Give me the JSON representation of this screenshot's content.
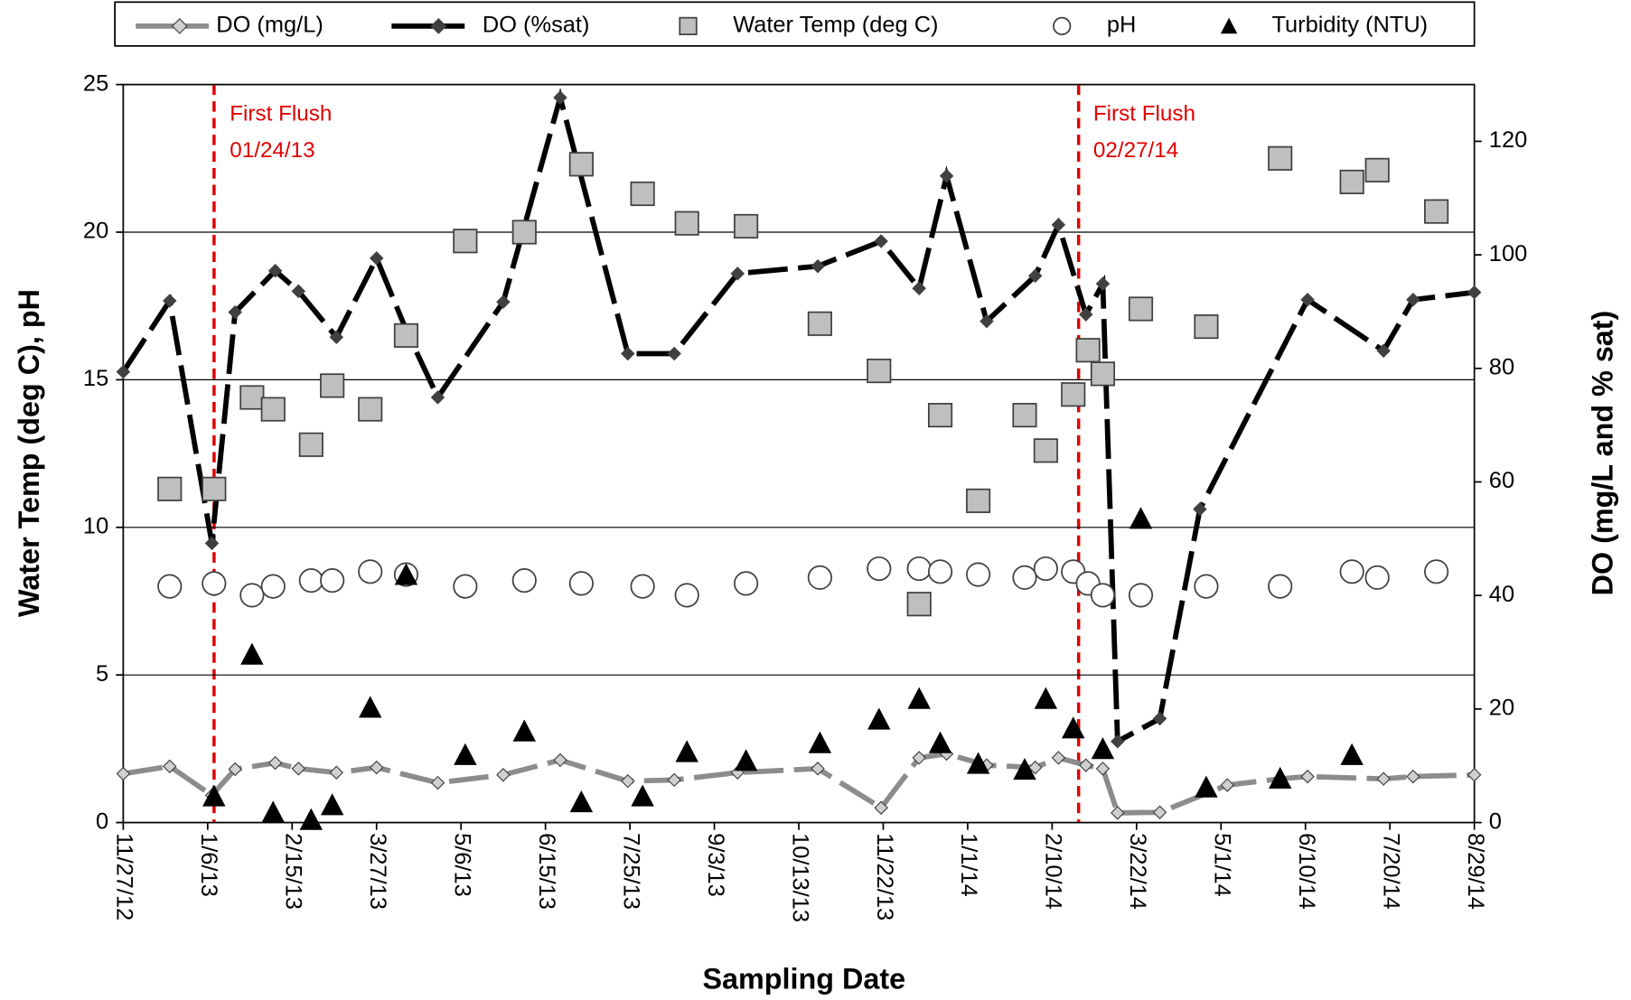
{
  "chart_data": {
    "type": "line",
    "x_label": "Sampling Date",
    "y_label": "Water Temp (deg C), pH",
    "y2_label": "DO (mg/L and % sat)",
    "xlim": [
      "11/27/12",
      "8/29/14"
    ],
    "xticks": [
      "11/27/12",
      "1/6/13",
      "2/15/13",
      "3/27/13",
      "5/6/13",
      "6/15/13",
      "7/25/13",
      "9/3/13",
      "10/13/13",
      "11/22/13",
      "1/1/14",
      "2/10/14",
      "3/22/14",
      "5/1/14",
      "6/10/14",
      "7/20/14",
      "8/29/14"
    ],
    "ylim": [
      0,
      25
    ],
    "yticks": [
      0,
      5,
      10,
      15,
      20,
      25
    ],
    "y2lim": [
      0,
      130
    ],
    "y2ticks": [
      0,
      20,
      40,
      60,
      80,
      100,
      120
    ],
    "grid": true,
    "annotations": [
      {
        "lines": [
          "First Flush",
          "01/24/13"
        ]
      },
      {
        "lines": [
          "First Flush",
          "02/27/14"
        ]
      }
    ],
    "series": [
      {
        "name": "DO (mg/L)",
        "color": "#8c8c8c",
        "marker": "diamond",
        "line_style": "dashed",
        "axis": "y2",
        "x": [
          "11/27/12",
          "12/19/12",
          "1/8/13",
          "1/19/13",
          "2/7/13",
          "2/18/13",
          "3/8/13",
          "3/27/13",
          "4/25/13",
          "5/26/13",
          "6/22/13",
          "7/24/13",
          "8/15/13",
          "9/14/13",
          "10/22/13",
          "11/21/13",
          "12/9/13",
          "12/22/13",
          "1/10/14",
          "2/2/14",
          "2/13/14",
          "2/26/14",
          "3/6/14",
          "3/13/14",
          "4/2/14",
          "5/4/14",
          "5/29/14",
          "6/11/14",
          "7/17/14",
          "7/31/14",
          "8/29/14"
        ],
        "values": [
          8.6,
          9.9,
          4.8,
          9.4,
          10.5,
          9.5,
          8.8,
          9.7,
          7.0,
          8.4,
          11.0,
          7.3,
          7.5,
          8.8,
          9.5,
          2.6,
          11.4,
          12.1,
          10.1,
          9.7,
          11.4,
          10.1,
          9.5,
          1.7,
          1.8,
          6.6,
          7.7,
          8.1,
          7.7,
          8.1,
          8.4
        ]
      },
      {
        "name": "DO (%sat)",
        "color": "#000000",
        "marker": "diamond",
        "line_style": "dashed",
        "axis": "y2",
        "x": [
          "11/27/12",
          "12/19/12",
          "1/8/13",
          "1/19/13",
          "2/7/13",
          "2/18/13",
          "3/8/13",
          "3/27/13",
          "4/10/13",
          "4/25/13",
          "5/26/13",
          "6/22/13",
          "7/24/13",
          "8/15/13",
          "9/14/13",
          "10/22/13",
          "11/21/13",
          "12/9/13",
          "12/22/13",
          "1/10/14",
          "2/2/14",
          "2/13/14",
          "2/26/14",
          "3/6/14",
          "3/13/14",
          "4/2/14",
          "4/21/14",
          "6/11/14",
          "7/17/14",
          "7/31/14",
          "8/29/14"
        ],
        "values": [
          79.4,
          91.9,
          49.2,
          89.9,
          97.2,
          93.6,
          85.5,
          99.4,
          86.8,
          74.9,
          91.7,
          127.7,
          82.6,
          82.6,
          96.7,
          98.0,
          102.4,
          94.1,
          113.9,
          88.3,
          96.3,
          105.3,
          89.5,
          94.9,
          14.3,
          18.3,
          55.2,
          92.1,
          83.1,
          92.1,
          93.4
        ]
      },
      {
        "name": "Water Temp (deg C)",
        "color": "#bfbfbf",
        "marker": "square",
        "axis": "y",
        "x": [
          "12/19/12",
          "1/9/13",
          "1/27/13",
          "2/6/13",
          "2/24/13",
          "3/6/13",
          "3/24/13",
          "4/10/13",
          "5/8/13",
          "6/5/13",
          "7/2/13",
          "7/31/13",
          "8/21/13",
          "9/18/13",
          "10/23/13",
          "11/20/13",
          "12/9/13",
          "12/19/13",
          "1/6/14",
          "1/28/14",
          "2/7/14",
          "2/20/14",
          "2/27/14",
          "3/6/14",
          "3/24/14",
          "4/24/14",
          "5/29/14",
          "7/2/14",
          "7/14/14",
          "8/11/14"
        ],
        "values": [
          11.3,
          11.3,
          14.4,
          14.0,
          12.8,
          14.8,
          14.0,
          16.5,
          19.7,
          20.0,
          22.3,
          21.3,
          20.3,
          20.2,
          16.9,
          15.3,
          7.4,
          13.8,
          10.9,
          13.8,
          12.6,
          14.5,
          16.0,
          15.2,
          17.4,
          16.8,
          22.5,
          21.7,
          22.1,
          20.7
        ]
      },
      {
        "name": "pH",
        "color": "#ffffff",
        "marker": "circle",
        "axis": "y",
        "x": [
          "12/19/12",
          "1/9/13",
          "1/27/13",
          "2/6/13",
          "2/24/13",
          "3/6/13",
          "3/24/13",
          "4/10/13",
          "5/8/13",
          "6/5/13",
          "7/2/13",
          "7/31/13",
          "8/21/13",
          "9/18/13",
          "10/23/13",
          "11/20/13",
          "12/9/13",
          "12/19/13",
          "1/6/14",
          "1/28/14",
          "2/7/14",
          "2/20/14",
          "2/27/14",
          "3/6/14",
          "3/24/14",
          "4/24/14",
          "5/29/14",
          "7/2/14",
          "7/14/14",
          "8/11/14"
        ],
        "values": [
          8.0,
          8.1,
          7.7,
          8.0,
          8.2,
          8.2,
          8.5,
          8.4,
          8.0,
          8.2,
          8.1,
          8.0,
          7.7,
          8.1,
          8.3,
          8.6,
          8.6,
          8.5,
          8.4,
          8.3,
          8.6,
          8.5,
          8.1,
          7.7,
          7.7,
          8.0,
          8.0,
          8.5,
          8.3,
          8.5
        ]
      },
      {
        "name": "Turbidity (NTU)",
        "color": "#000000",
        "marker": "triangle",
        "axis": "y",
        "x": [
          "1/9/13",
          "1/27/13",
          "2/6/13",
          "2/24/13",
          "3/6/13",
          "3/24/13",
          "4/10/13",
          "5/8/13",
          "6/5/13",
          "7/2/13",
          "7/31/13",
          "8/21/13",
          "9/18/13",
          "10/23/13",
          "11/20/13",
          "12/9/13",
          "12/19/13",
          "1/6/14",
          "1/28/14",
          "2/7/14",
          "2/20/14",
          "3/6/14",
          "3/24/14",
          "4/24/14",
          "5/29/14",
          "7/2/14"
        ],
        "values": [
          0.9,
          5.7,
          0.35,
          0.1,
          0.6,
          3.9,
          8.4,
          2.3,
          3.1,
          0.7,
          0.9,
          2.4,
          2.1,
          2.7,
          3.5,
          4.2,
          2.7,
          2.0,
          1.8,
          4.2,
          3.2,
          2.5,
          10.3,
          1.2,
          1.5,
          2.3
        ]
      }
    ]
  }
}
